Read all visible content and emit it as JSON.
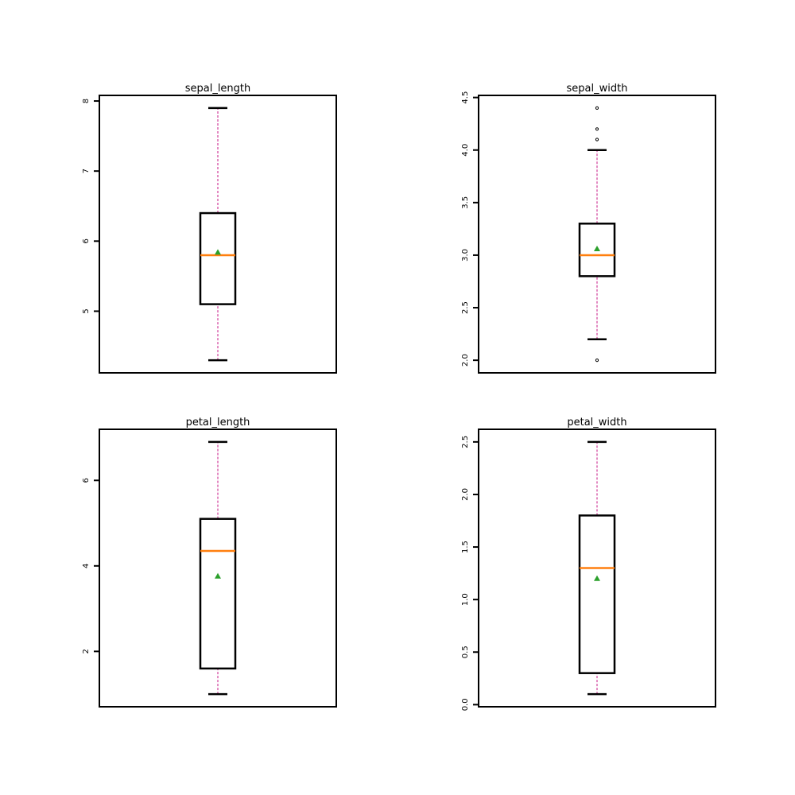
{
  "chart_data": [
    {
      "type": "box",
      "title": "sepal_length",
      "ylim": [
        4.12,
        8.08
      ],
      "yticks": [
        5,
        6,
        7,
        8
      ],
      "ytick_labels": [
        "5",
        "6",
        "7",
        "8"
      ],
      "stats": {
        "whisker_low": 4.3,
        "q1": 5.1,
        "median": 5.8,
        "q3": 6.4,
        "whisker_high": 7.9,
        "mean": 5.84
      },
      "outliers": []
    },
    {
      "type": "box",
      "title": "sepal_width",
      "ylim": [
        1.88,
        4.52
      ],
      "yticks": [
        2.0,
        2.5,
        3.0,
        3.5,
        4.0,
        4.5
      ],
      "ytick_labels": [
        "2.0",
        "2.5",
        "3.0",
        "3.5",
        "4.0",
        "4.5"
      ],
      "stats": {
        "whisker_low": 2.2,
        "q1": 2.8,
        "median": 3.0,
        "q3": 3.3,
        "whisker_high": 4.0,
        "mean": 3.06
      },
      "outliers": [
        2.0,
        4.1,
        4.2,
        4.4
      ]
    },
    {
      "type": "box",
      "title": "petal_length",
      "ylim": [
        0.705,
        7.195
      ],
      "yticks": [
        2,
        4,
        6
      ],
      "ytick_labels": [
        "2",
        "4",
        "6"
      ],
      "stats": {
        "whisker_low": 1.0,
        "q1": 1.6,
        "median": 4.35,
        "q3": 5.1,
        "whisker_high": 6.9,
        "mean": 3.76
      },
      "outliers": []
    },
    {
      "type": "box",
      "title": "petal_width",
      "ylim": [
        -0.02,
        2.62
      ],
      "yticks": [
        0.0,
        0.5,
        1.0,
        1.5,
        2.0,
        2.5
      ],
      "ytick_labels": [
        "0.0",
        "0.5",
        "1.0",
        "1.5",
        "2.0",
        "2.5"
      ],
      "stats": {
        "whisker_low": 0.1,
        "q1": 0.3,
        "median": 1.3,
        "q3": 1.8,
        "whisker_high": 2.5,
        "mean": 1.2
      },
      "outliers": []
    }
  ],
  "style": {
    "box_color": "#000000",
    "median_color": "#ff7f0e",
    "whisker_color": "#c71585",
    "mean_marker_color": "#2ca02c",
    "outlier_color": "#000000"
  }
}
